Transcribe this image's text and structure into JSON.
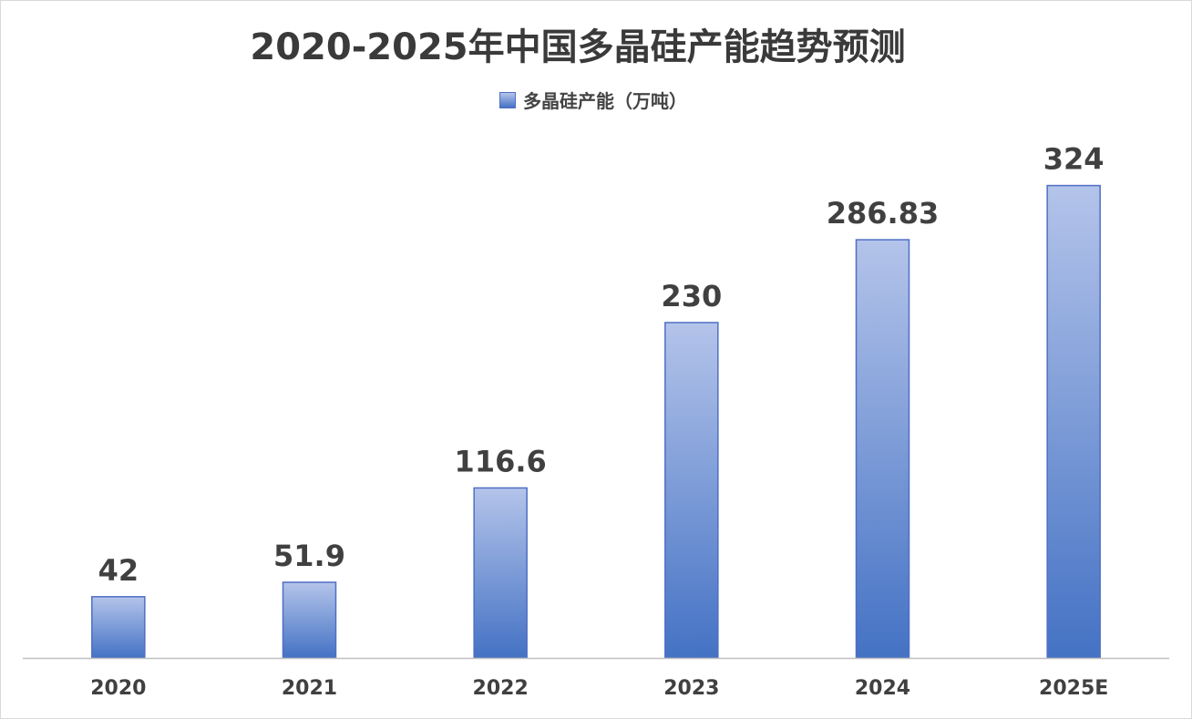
{
  "chart_data": {
    "type": "bar",
    "title": "2020-2025年中国多晶硅产能趋势预测",
    "categories": [
      "2020",
      "2021",
      "2022",
      "2023",
      "2024",
      "2025E"
    ],
    "series": [
      {
        "name": "多晶硅产能（万吨）",
        "values": [
          42,
          51.9,
          116.6,
          230,
          286.83,
          324
        ],
        "labels": [
          "42",
          "51.9",
          "116.6",
          "230",
          "286.83",
          "324"
        ]
      }
    ],
    "xlabel": "",
    "ylabel": "",
    "ylim": [
      0,
      350
    ],
    "grid": false,
    "legend": "top-center",
    "colors": {
      "bar_top": "#b4c4ea",
      "bar_bottom": "#4472c4",
      "bar_border": "#4f6fc4",
      "axis": "#bfbfbf",
      "text": "#404040"
    }
  }
}
